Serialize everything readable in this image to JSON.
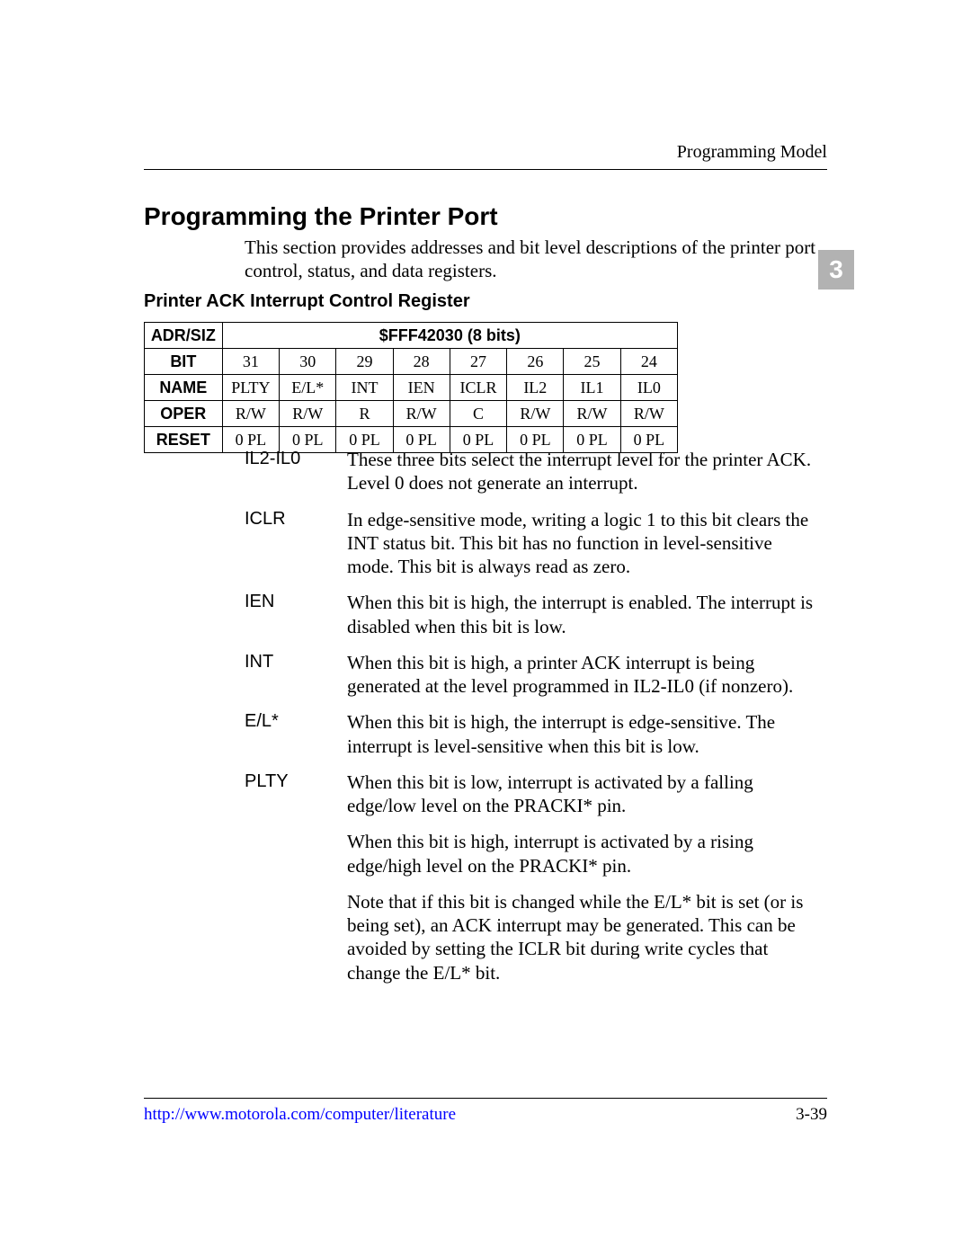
{
  "header": {
    "running_head": "Programming Model",
    "chapter_tab": "3"
  },
  "section": {
    "title": "Programming the Printer Port",
    "intro": "This section provides addresses and bit level descriptions of the printer port control, status, and data registers.",
    "sub_title": "Printer ACK Interrupt Control Register"
  },
  "table": {
    "adr_siz_label": "ADR/SIZ",
    "adr_siz_value": "$FFF42030 (8 bits)",
    "rows": {
      "bit": {
        "label": "BIT",
        "c": [
          "31",
          "30",
          "29",
          "28",
          "27",
          "26",
          "25",
          "24"
        ]
      },
      "name": {
        "label": "NAME",
        "c": [
          "PLTY",
          "E/L*",
          "INT",
          "IEN",
          "ICLR",
          "IL2",
          "IL1",
          "IL0"
        ]
      },
      "oper": {
        "label": "OPER",
        "c": [
          "R/W",
          "R/W",
          "R",
          "R/W",
          "C",
          "R/W",
          "R/W",
          "R/W"
        ]
      },
      "reset": {
        "label": "RESET",
        "c": [
          "0 PL",
          "0 PL",
          "0 PL",
          "0 PL",
          "0 PL",
          "0 PL",
          "0 PL",
          "0 PL"
        ]
      }
    }
  },
  "defs": [
    {
      "term": "IL2-IL0",
      "paras": [
        "These three bits select the interrupt level for the printer ACK. Level 0 does not generate an interrupt."
      ]
    },
    {
      "term": "ICLR",
      "paras": [
        "In edge-sensitive mode, writing a logic 1 to this bit clears the INT status bit. This bit has no function in level-sensitive mode. This bit is always read as zero."
      ]
    },
    {
      "term": "IEN",
      "paras": [
        "When this bit is high, the interrupt is enabled. The interrupt is disabled when this bit is low."
      ]
    },
    {
      "term": "INT",
      "paras": [
        "When this bit is high, a printer ACK interrupt is being generated at the level programmed in IL2-IL0 (if nonzero)."
      ]
    },
    {
      "term": "E/L*",
      "paras": [
        "When this bit is high, the interrupt is edge-sensitive. The interrupt is level-sensitive when this bit is low."
      ]
    },
    {
      "term": "PLTY",
      "paras": [
        "When this bit is low, interrupt is activated by a falling edge/low level on the PRACKI* pin.",
        "When this bit is high, interrupt is activated by a rising edge/high level on the PRACKI* pin.",
        "Note that if this bit is changed while the E/L* bit is set (or is being set), an ACK interrupt may be generated. This can be avoided by setting the ICLR bit during write cycles that change the E/L* bit."
      ]
    }
  ],
  "footer": {
    "link": "http://www.motorola.com/computer/literature",
    "page": "3-39"
  }
}
